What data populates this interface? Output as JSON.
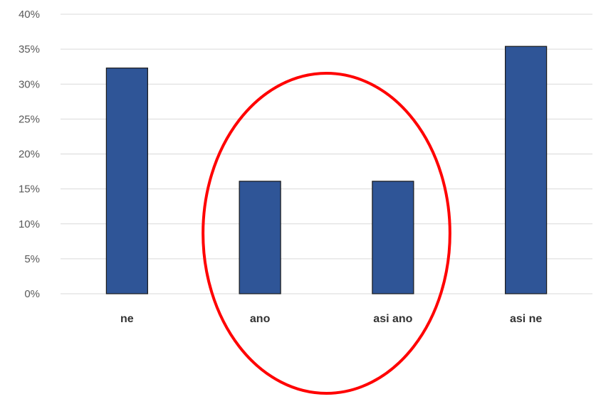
{
  "chart_data": {
    "type": "bar",
    "categories": [
      "ne",
      "ano",
      "asi ano",
      "asi ne"
    ],
    "values": [
      32.3,
      16.1,
      16.1,
      35.4
    ],
    "ylim": [
      0,
      40
    ],
    "y_ticks": [
      0,
      5,
      10,
      15,
      20,
      25,
      30,
      35,
      40
    ],
    "y_tick_labels": [
      "0%",
      "5%",
      "10%",
      "15%",
      "20%",
      "25%",
      "30%",
      "35%",
      "40%"
    ],
    "grid": true,
    "legend": "none",
    "title": "",
    "xlabel": "",
    "ylabel": "",
    "colors": {
      "bar_fill": "#2f5597",
      "bar_stroke": "#1a1a1a",
      "gridline": "#d9d9d9",
      "annotation": "#ff0000"
    },
    "annotations": [
      {
        "shape": "ellipse",
        "encloses_categories": [
          "ano",
          "asi ano"
        ],
        "color": "#ff0000"
      }
    ]
  }
}
